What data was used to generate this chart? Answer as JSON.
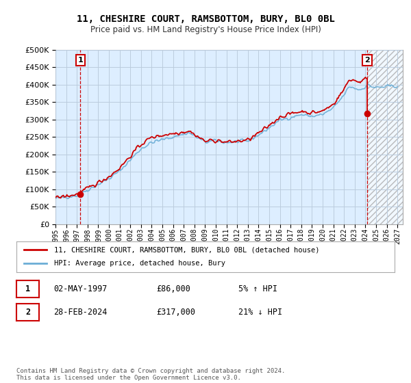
{
  "title": "11, CHESHIRE COURT, RAMSBOTTOM, BURY, BL0 0BL",
  "subtitle": "Price paid vs. HM Land Registry's House Price Index (HPI)",
  "ylim": [
    0,
    500000
  ],
  "xlim_start": 1995.0,
  "xlim_end": 2027.5,
  "xticks": [
    1995,
    1996,
    1997,
    1998,
    1999,
    2000,
    2001,
    2002,
    2003,
    2004,
    2005,
    2006,
    2007,
    2008,
    2009,
    2010,
    2011,
    2012,
    2013,
    2014,
    2015,
    2016,
    2017,
    2018,
    2019,
    2020,
    2021,
    2022,
    2023,
    2024,
    2025,
    2026,
    2027
  ],
  "hpi_color": "#6baed6",
  "price_color": "#cc0000",
  "chart_bg": "#ddeeff",
  "sale1_x": 1997.33,
  "sale1_y": 86000,
  "sale2_x": 2024.17,
  "sale2_y": 317000,
  "legend_line1": "11, CHESHIRE COURT, RAMSBOTTOM, BURY, BL0 0BL (detached house)",
  "legend_line2": "HPI: Average price, detached house, Bury",
  "table_row1": [
    "1",
    "02-MAY-1997",
    "£86,000",
    "5% ↑ HPI"
  ],
  "table_row2": [
    "2",
    "28-FEB-2024",
    "£317,000",
    "21% ↓ HPI"
  ],
  "footer": "Contains HM Land Registry data © Crown copyright and database right 2024.\nThis data is licensed under the Open Government Licence v3.0.",
  "background_color": "#ffffff",
  "grid_color": "#bbccdd"
}
